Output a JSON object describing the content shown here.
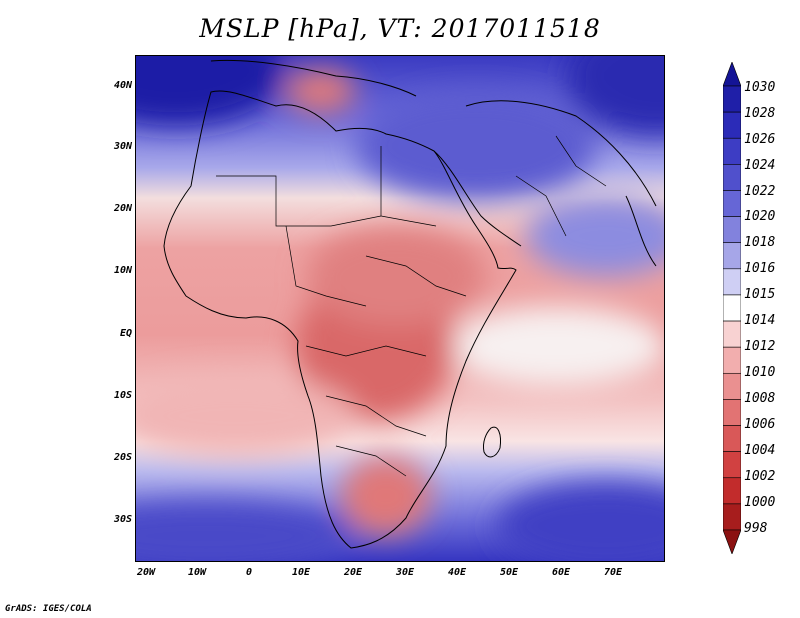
{
  "title": "MSLP [hPa], VT: 2017011518",
  "footer": "GrADS: IGES/COLA",
  "lat_labels": [
    "40N",
    "30N",
    "20N",
    "10N",
    "EQ",
    "10S",
    "20S",
    "30S"
  ],
  "lon_labels": [
    "20W",
    "10W",
    "0",
    "10E",
    "20E",
    "30E",
    "40E",
    "50E",
    "60E",
    "70E"
  ],
  "colorbar": {
    "levels": [
      "1030",
      "1028",
      "1026",
      "1024",
      "1022",
      "1020",
      "1018",
      "1016",
      "1015",
      "1014",
      "1012",
      "1010",
      "1008",
      "1006",
      "1004",
      "1002",
      "1000",
      "998"
    ],
    "colors": [
      "#141496",
      "#1f1fa8",
      "#2b2bb8",
      "#3d3dc4",
      "#5050cc",
      "#6666d6",
      "#8282dd",
      "#a6a6e8",
      "#cfcff4",
      "#ffffff",
      "#f8d2d2",
      "#f2aeae",
      "#ea9090",
      "#e27373",
      "#d95858",
      "#d14141",
      "#c22c2c",
      "#a71d1d",
      "#8b1111"
    ]
  }
}
